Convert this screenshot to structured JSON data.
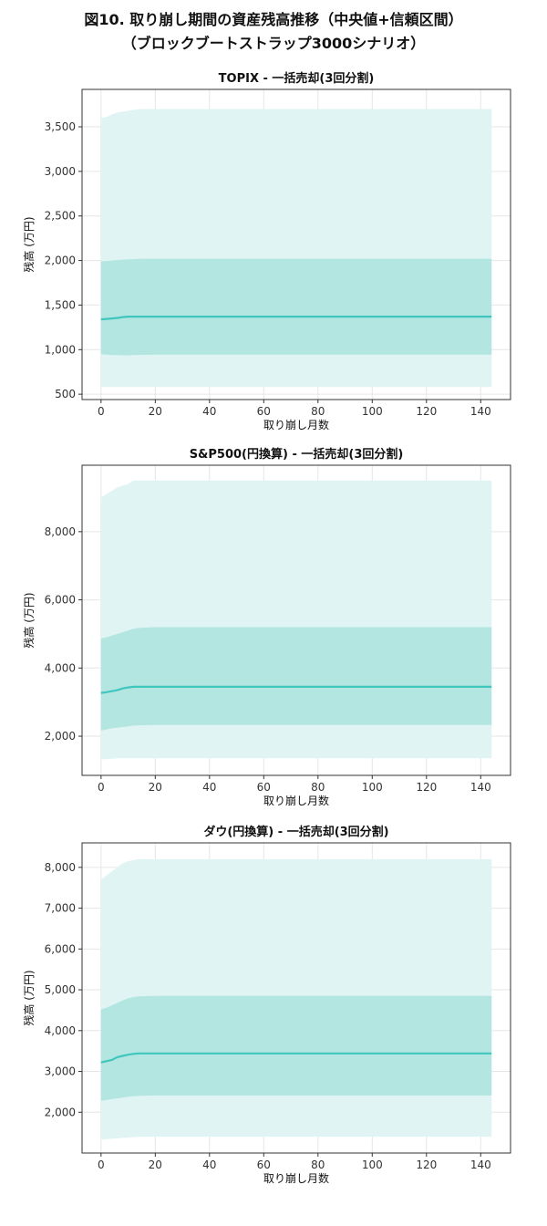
{
  "figure": {
    "title_line1": "図10. 取り崩し期間の資産残高推移（中央値+信頼区間）",
    "title_line2": "（ブロックブートストラップ3000シナリオ）"
  },
  "colors": {
    "outer_band": "#dff4f3",
    "inner_band": "#b3e6e1",
    "median_line": "#3fc7bd",
    "grid": "#e6e6e6"
  },
  "chart_data": [
    {
      "type": "area",
      "title": "TOPIX - 一括売却(3回分割)",
      "xlabel": "取り崩し月数",
      "ylabel": "残高 (万円)",
      "xlim": [
        -7,
        151
      ],
      "ylim": [
        440,
        3920
      ],
      "xticks": [
        0,
        20,
        40,
        60,
        80,
        100,
        120,
        140
      ],
      "yticks": [
        500,
        1000,
        1500,
        2000,
        2500,
        3000,
        3500
      ],
      "grid": true,
      "x": [
        0,
        2,
        4,
        6,
        8,
        10,
        12,
        14,
        20,
        40,
        60,
        80,
        100,
        120,
        144
      ],
      "series": [
        {
          "role": "outer_upper",
          "values": [
            3600,
            3610,
            3640,
            3660,
            3670,
            3680,
            3690,
            3700,
            3700,
            3700,
            3700,
            3700,
            3700,
            3700,
            3700
          ]
        },
        {
          "role": "inner_upper",
          "values": [
            1990,
            1995,
            2000,
            2005,
            2010,
            2013,
            2015,
            2018,
            2020,
            2020,
            2020,
            2020,
            2020,
            2020,
            2020
          ]
        },
        {
          "role": "median",
          "values": [
            1340,
            1345,
            1350,
            1355,
            1365,
            1370,
            1370,
            1370,
            1370,
            1370,
            1370,
            1370,
            1370,
            1370,
            1370
          ]
        },
        {
          "role": "inner_lower",
          "values": [
            950,
            945,
            940,
            938,
            936,
            935,
            938,
            940,
            945,
            945,
            945,
            945,
            945,
            945,
            945
          ]
        },
        {
          "role": "outer_lower",
          "values": [
            580,
            580,
            580,
            580,
            580,
            580,
            580,
            580,
            580,
            580,
            580,
            580,
            580,
            580,
            580
          ]
        }
      ]
    },
    {
      "type": "area",
      "title": "S&P500(円換算) - 一括売却(3回分割)",
      "xlabel": "取り崩し月数",
      "ylabel": "残高 (万円)",
      "xlim": [
        -7,
        151
      ],
      "ylim": [
        850,
        9950
      ],
      "xticks": [
        0,
        20,
        40,
        60,
        80,
        100,
        120,
        140
      ],
      "yticks": [
        2000,
        4000,
        6000,
        8000
      ],
      "grid": true,
      "x": [
        0,
        2,
        4,
        6,
        8,
        10,
        12,
        14,
        20,
        40,
        60,
        80,
        100,
        120,
        144
      ],
      "series": [
        {
          "role": "outer_upper",
          "values": [
            9000,
            9100,
            9200,
            9300,
            9350,
            9400,
            9500,
            9500,
            9500,
            9500,
            9500,
            9500,
            9500,
            9500,
            9500
          ]
        },
        {
          "role": "inner_upper",
          "values": [
            4870,
            4900,
            4950,
            5000,
            5050,
            5100,
            5150,
            5180,
            5200,
            5200,
            5200,
            5200,
            5200,
            5200,
            5200
          ]
        },
        {
          "role": "median",
          "values": [
            3270,
            3290,
            3320,
            3350,
            3400,
            3430,
            3450,
            3450,
            3450,
            3450,
            3450,
            3450,
            3450,
            3450,
            3450
          ]
        },
        {
          "role": "inner_lower",
          "values": [
            2170,
            2200,
            2230,
            2250,
            2270,
            2290,
            2310,
            2320,
            2330,
            2330,
            2330,
            2330,
            2330,
            2330,
            2330
          ]
        },
        {
          "role": "outer_lower",
          "values": [
            1320,
            1330,
            1340,
            1350,
            1350,
            1350,
            1350,
            1350,
            1350,
            1350,
            1350,
            1350,
            1350,
            1350,
            1350
          ]
        }
      ]
    },
    {
      "type": "area",
      "title": "ダウ(円換算) - 一括売却(3回分割)",
      "xlabel": "取り崩し月数",
      "ylabel": "残高 (万円)",
      "xlim": [
        -7,
        151
      ],
      "ylim": [
        1000,
        8600
      ],
      "xticks": [
        0,
        20,
        40,
        60,
        80,
        100,
        120,
        140
      ],
      "yticks": [
        2000,
        3000,
        4000,
        5000,
        6000,
        7000,
        8000
      ],
      "grid": true,
      "x": [
        0,
        2,
        4,
        6,
        8,
        10,
        12,
        14,
        20,
        40,
        60,
        80,
        100,
        120,
        144
      ],
      "series": [
        {
          "role": "outer_upper",
          "values": [
            7700,
            7800,
            7900,
            8000,
            8100,
            8150,
            8180,
            8200,
            8200,
            8200,
            8200,
            8200,
            8200,
            8200,
            8200
          ]
        },
        {
          "role": "inner_upper",
          "values": [
            4520,
            4560,
            4620,
            4680,
            4740,
            4790,
            4820,
            4840,
            4850,
            4850,
            4850,
            4850,
            4850,
            4850,
            4850
          ]
        },
        {
          "role": "median",
          "values": [
            3220,
            3250,
            3280,
            3350,
            3380,
            3410,
            3430,
            3440,
            3440,
            3440,
            3440,
            3440,
            3440,
            3440,
            3440
          ]
        },
        {
          "role": "inner_lower",
          "values": [
            2280,
            2300,
            2320,
            2340,
            2360,
            2380,
            2390,
            2400,
            2410,
            2410,
            2410,
            2410,
            2410,
            2410,
            2410
          ]
        },
        {
          "role": "outer_lower",
          "values": [
            1330,
            1340,
            1350,
            1360,
            1370,
            1380,
            1390,
            1400,
            1400,
            1400,
            1400,
            1400,
            1400,
            1400,
            1400
          ]
        }
      ]
    }
  ]
}
